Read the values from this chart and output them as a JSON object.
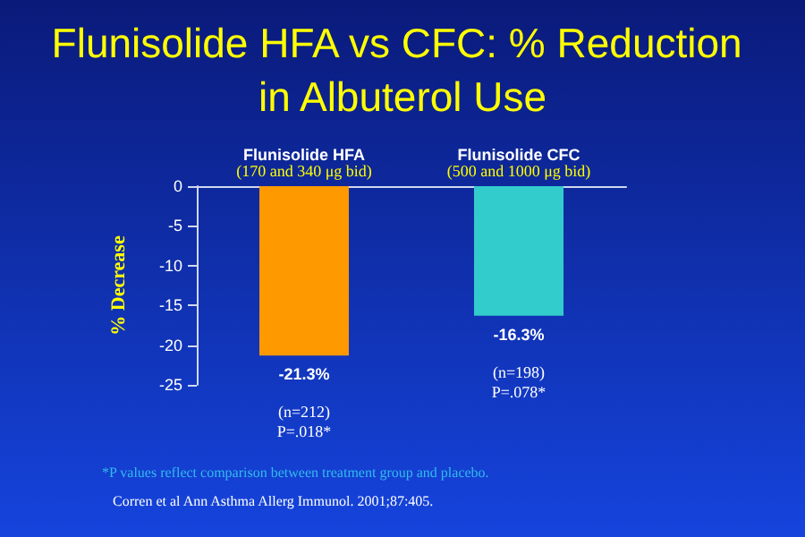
{
  "chart_data": {
    "type": "bar",
    "title": "Flunisolide HFA vs CFC: % Reduction in Albuterol Use",
    "categories": [
      "Flunisolide HFA\n(170 and 340 μg bid)",
      "Flunisolide CFC\n(500 and 1000 μg bid)"
    ],
    "values": [
      -21.3,
      -16.3
    ],
    "colors": [
      "#ff9900",
      "#33cccc"
    ],
    "value_labels": [
      "-21.3%",
      "-16.3%"
    ],
    "ylabel": "% Decrease",
    "ylim": [
      -25,
      0
    ],
    "yticks": [
      -25,
      -20,
      -15,
      -10,
      -5,
      0
    ],
    "grid": false,
    "annotations": [
      "(n=212)\nP=.018*",
      "(n=198)\nP=.078*",
      "*P values reflect comparison between treatment group and placebo.",
      "Corren et al Ann Asthma Allerg Immunol. 2001;87:405."
    ]
  }
}
